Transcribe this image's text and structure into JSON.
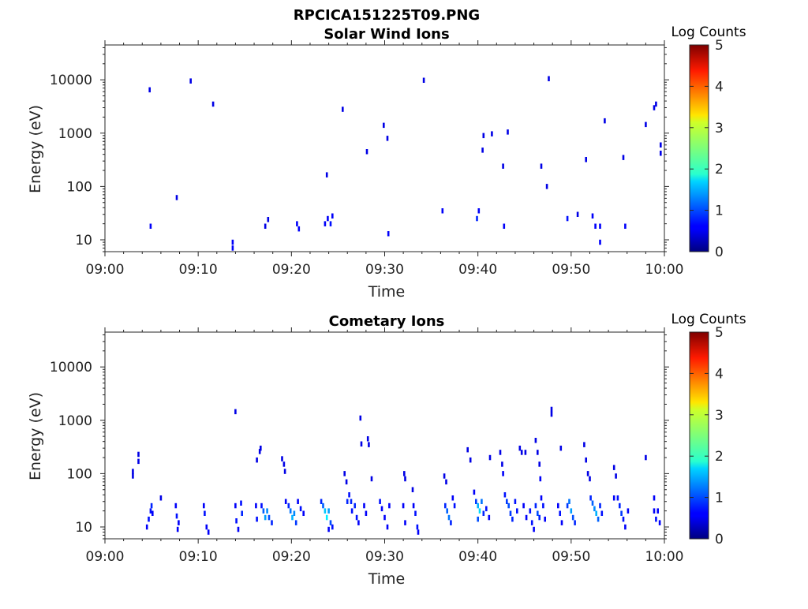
{
  "figure_title": "RPCICA151225T09.PNG",
  "colors": {
    "colormap": "jet",
    "frame": "#262626",
    "background": "#ffffff"
  },
  "chart_data": [
    {
      "type": "heatmap",
      "title": "Solar Wind Ions",
      "xlabel": "Time",
      "ylabel": "Energy (eV)",
      "x_tick_labels": [
        "09:00",
        "09:10",
        "09:20",
        "09:30",
        "09:40",
        "09:50",
        "10:00"
      ],
      "x_ticks_min": [
        0,
        10,
        20,
        30,
        40,
        50,
        60
      ],
      "xlim_min": [
        0,
        60
      ],
      "y_scale": "log",
      "ylim": [
        6,
        45000
      ],
      "y_tick_labels": [
        "10",
        "100",
        "1000",
        "10000"
      ],
      "y_ticks": [
        10,
        100,
        1000,
        10000
      ],
      "colorbar": {
        "label": "Log Counts",
        "range": [
          0,
          5
        ],
        "tick_labels": [
          "0",
          "1",
          "2",
          "3",
          "4",
          "5"
        ]
      },
      "cells": [
        [
          4.8,
          6500,
          0.5
        ],
        [
          4.9,
          18,
          0.6
        ],
        [
          7.7,
          62,
          0.5
        ],
        [
          9.2,
          9500,
          0.5
        ],
        [
          11.6,
          3500,
          0.5
        ],
        [
          13.7,
          9,
          0.6
        ],
        [
          13.7,
          7,
          0.6
        ],
        [
          17.2,
          18,
          0.5
        ],
        [
          17.5,
          24,
          0.5
        ],
        [
          20.6,
          20,
          0.6
        ],
        [
          20.8,
          16,
          0.6
        ],
        [
          23.6,
          20,
          0.6
        ],
        [
          23.8,
          165,
          0.5
        ],
        [
          23.9,
          25,
          0.6
        ],
        [
          24.2,
          20,
          0.7
        ],
        [
          24.4,
          28,
          0.6
        ],
        [
          25.5,
          2800,
          0.5
        ],
        [
          28.1,
          450,
          0.5
        ],
        [
          29.9,
          1400,
          0.5
        ],
        [
          30.3,
          800,
          0.5
        ],
        [
          30.4,
          13,
          0.6
        ],
        [
          34.2,
          9800,
          0.5
        ],
        [
          36.2,
          35,
          0.6
        ],
        [
          39.9,
          25,
          0.8
        ],
        [
          40.1,
          35,
          0.6
        ],
        [
          40.5,
          480,
          0.5
        ],
        [
          40.6,
          900,
          0.5
        ],
        [
          41.5,
          970,
          0.5
        ],
        [
          42.7,
          240,
          0.5
        ],
        [
          42.8,
          18,
          0.6
        ],
        [
          43.2,
          1050,
          0.5
        ],
        [
          46.8,
          240,
          0.5
        ],
        [
          47.4,
          100,
          0.5
        ],
        [
          47.6,
          10500,
          0.5
        ],
        [
          49.6,
          25,
          0.7
        ],
        [
          50.7,
          30,
          0.5
        ],
        [
          51.6,
          320,
          0.5
        ],
        [
          52.3,
          28,
          0.6
        ],
        [
          52.6,
          18,
          0.6
        ],
        [
          53.1,
          18,
          0.6
        ],
        [
          53.1,
          9,
          0.6
        ],
        [
          53.6,
          1700,
          0.5
        ],
        [
          55.6,
          350,
          0.5
        ],
        [
          55.8,
          18,
          0.6
        ],
        [
          58.0,
          1450,
          0.5
        ],
        [
          58.9,
          3000,
          0.5
        ],
        [
          59.1,
          3500,
          0.5
        ],
        [
          59.6,
          600,
          0.5
        ],
        [
          59.6,
          420,
          0.5
        ]
      ]
    },
    {
      "type": "heatmap",
      "title": "Cometary Ions",
      "xlabel": "Time",
      "ylabel": "Energy (eV)",
      "x_tick_labels": [
        "09:00",
        "09:10",
        "09:20",
        "09:30",
        "09:40",
        "09:50",
        "10:00"
      ],
      "x_ticks_min": [
        0,
        10,
        20,
        30,
        40,
        50,
        60
      ],
      "xlim_min": [
        0,
        60
      ],
      "y_scale": "log",
      "ylim": [
        6,
        45000
      ],
      "y_tick_labels": [
        "10",
        "100",
        "1000",
        "10000"
      ],
      "y_ticks": [
        10,
        100,
        1000,
        10000
      ],
      "colorbar": {
        "label": "Log Counts",
        "range": [
          0,
          5
        ],
        "tick_labels": [
          "0",
          "1",
          "2",
          "3",
          "4",
          "5"
        ]
      },
      "cells": [
        [
          3.0,
          110,
          0.5
        ],
        [
          3.0,
          90,
          0.5
        ],
        [
          3.6,
          230,
          0.5
        ],
        [
          3.6,
          170,
          0.5
        ],
        [
          6.0,
          35,
          0.5
        ],
        [
          4.5,
          10,
          0.6
        ],
        [
          4.7,
          14,
          0.7
        ],
        [
          4.9,
          20,
          0.7
        ],
        [
          5.0,
          25,
          0.8
        ],
        [
          5.1,
          18,
          0.6
        ],
        [
          7.6,
          25,
          0.6
        ],
        [
          7.7,
          16,
          0.7
        ],
        [
          7.8,
          9,
          0.6
        ],
        [
          7.9,
          12,
          0.6
        ],
        [
          10.6,
          25,
          0.6
        ],
        [
          10.7,
          18,
          0.7
        ],
        [
          10.9,
          10,
          0.6
        ],
        [
          11.1,
          8,
          0.6
        ],
        [
          14.0,
          1450,
          0.5
        ],
        [
          14.0,
          25,
          0.6
        ],
        [
          14.1,
          13,
          0.7
        ],
        [
          14.3,
          9,
          0.6
        ],
        [
          14.6,
          28,
          0.7
        ],
        [
          14.7,
          18,
          0.8
        ],
        [
          16.3,
          180,
          0.5
        ],
        [
          16.6,
          260,
          0.5
        ],
        [
          16.7,
          300,
          0.5
        ],
        [
          16.2,
          25,
          0.6
        ],
        [
          16.3,
          14,
          0.7
        ],
        [
          16.8,
          25,
          0.7
        ],
        [
          17.0,
          20,
          1.1
        ],
        [
          17.2,
          15,
          1.4
        ],
        [
          17.4,
          20,
          1.3
        ],
        [
          17.6,
          15,
          1.0
        ],
        [
          17.9,
          12,
          0.8
        ],
        [
          19.0,
          190,
          0.5
        ],
        [
          19.2,
          150,
          0.5
        ],
        [
          19.3,
          110,
          0.5
        ],
        [
          19.4,
          30,
          0.6
        ],
        [
          19.7,
          25,
          0.8
        ],
        [
          19.9,
          20,
          1.2
        ],
        [
          20.1,
          15,
          1.5
        ],
        [
          20.3,
          18,
          1.3
        ],
        [
          20.5,
          12,
          0.9
        ],
        [
          20.7,
          30,
          0.6
        ],
        [
          21.0,
          22,
          0.7
        ],
        [
          21.3,
          18,
          0.6
        ],
        [
          23.2,
          30,
          0.8
        ],
        [
          23.4,
          25,
          1.1
        ],
        [
          23.6,
          20,
          1.6
        ],
        [
          23.8,
          15,
          1.8
        ],
        [
          24.0,
          20,
          1.4
        ],
        [
          24.2,
          12,
          1.0
        ],
        [
          24.4,
          10,
          0.7
        ],
        [
          24.0,
          9,
          0.6
        ],
        [
          25.7,
          100,
          0.5
        ],
        [
          25.9,
          70,
          0.5
        ],
        [
          26.0,
          30,
          0.8
        ],
        [
          26.2,
          40,
          0.7
        ],
        [
          26.4,
          30,
          0.8
        ],
        [
          26.5,
          20,
          0.7
        ],
        [
          26.8,
          25,
          0.8
        ],
        [
          27.0,
          15,
          0.7
        ],
        [
          27.2,
          12,
          0.6
        ],
        [
          27.4,
          1100,
          0.5
        ],
        [
          27.5,
          360,
          0.5
        ],
        [
          28.2,
          450,
          0.5
        ],
        [
          28.3,
          350,
          0.5
        ],
        [
          28.6,
          80,
          0.5
        ],
        [
          27.8,
          25,
          0.6
        ],
        [
          28.0,
          18,
          0.6
        ],
        [
          29.5,
          30,
          0.7
        ],
        [
          29.7,
          22,
          0.6
        ],
        [
          30.0,
          15,
          0.6
        ],
        [
          30.3,
          10,
          0.6
        ],
        [
          30.5,
          25,
          0.6
        ],
        [
          32.1,
          100,
          0.5
        ],
        [
          32.2,
          80,
          0.5
        ],
        [
          32.0,
          25,
          0.6
        ],
        [
          32.2,
          12,
          0.6
        ],
        [
          33.0,
          50,
          0.5
        ],
        [
          33.1,
          25,
          0.6
        ],
        [
          33.3,
          18,
          0.7
        ],
        [
          33.5,
          10,
          0.7
        ],
        [
          33.6,
          8,
          0.6
        ],
        [
          36.4,
          90,
          0.5
        ],
        [
          36.6,
          70,
          0.5
        ],
        [
          36.5,
          25,
          0.8
        ],
        [
          36.7,
          20,
          1.1
        ],
        [
          36.9,
          15,
          1.2
        ],
        [
          37.1,
          12,
          0.8
        ],
        [
          37.3,
          35,
          0.6
        ],
        [
          37.5,
          25,
          0.7
        ],
        [
          38.9,
          280,
          0.5
        ],
        [
          39.2,
          180,
          0.5
        ],
        [
          39.6,
          45,
          0.6
        ],
        [
          39.8,
          30,
          0.9
        ],
        [
          40.0,
          25,
          1.5
        ],
        [
          40.2,
          20,
          1.7
        ],
        [
          40.4,
          30,
          1.2
        ],
        [
          40.0,
          14,
          1.0
        ],
        [
          40.6,
          18,
          0.8
        ],
        [
          40.9,
          22,
          0.7
        ],
        [
          41.2,
          15,
          0.6
        ],
        [
          41.3,
          200,
          0.5
        ],
        [
          42.4,
          250,
          0.5
        ],
        [
          42.6,
          150,
          0.5
        ],
        [
          42.7,
          100,
          0.6
        ],
        [
          42.9,
          40,
          0.7
        ],
        [
          43.1,
          30,
          0.9
        ],
        [
          43.3,
          25,
          1.0
        ],
        [
          43.5,
          18,
          0.9
        ],
        [
          43.7,
          14,
          0.8
        ],
        [
          44.0,
          30,
          0.7
        ],
        [
          44.2,
          20,
          0.7
        ],
        [
          44.5,
          300,
          0.5
        ],
        [
          44.7,
          250,
          0.5
        ],
        [
          45.1,
          250,
          0.5
        ],
        [
          44.9,
          25,
          0.6
        ],
        [
          45.2,
          15,
          0.6
        ],
        [
          45.6,
          20,
          0.7
        ],
        [
          45.8,
          12,
          0.7
        ],
        [
          46.0,
          9,
          0.6
        ],
        [
          46.2,
          25,
          0.8
        ],
        [
          46.4,
          18,
          1.0
        ],
        [
          46.6,
          15,
          0.8
        ],
        [
          46.2,
          420,
          0.5
        ],
        [
          46.4,
          250,
          0.5
        ],
        [
          46.6,
          150,
          0.5
        ],
        [
          46.7,
          80,
          0.6
        ],
        [
          46.8,
          35,
          0.6
        ],
        [
          47.0,
          25,
          0.7
        ],
        [
          47.2,
          14,
          0.6
        ],
        [
          47.9,
          1600,
          0.5
        ],
        [
          47.9,
          1300,
          0.5
        ],
        [
          48.9,
          300,
          0.5
        ],
        [
          48.6,
          25,
          0.6
        ],
        [
          48.8,
          18,
          0.7
        ],
        [
          49.0,
          12,
          0.6
        ],
        [
          49.6,
          25,
          0.9
        ],
        [
          49.8,
          30,
          1.2
        ],
        [
          50.0,
          20,
          1.4
        ],
        [
          50.2,
          15,
          1.0
        ],
        [
          50.4,
          12,
          0.8
        ],
        [
          51.4,
          350,
          0.5
        ],
        [
          51.6,
          180,
          0.5
        ],
        [
          51.8,
          100,
          0.5
        ],
        [
          52.0,
          80,
          0.5
        ],
        [
          52.1,
          35,
          0.8
        ],
        [
          52.3,
          28,
          1.1
        ],
        [
          52.5,
          22,
          1.3
        ],
        [
          52.7,
          18,
          1.5
        ],
        [
          52.9,
          14,
          1.1
        ],
        [
          53.1,
          25,
          0.8
        ],
        [
          53.3,
          18,
          0.7
        ],
        [
          54.6,
          130,
          0.5
        ],
        [
          54.8,
          90,
          0.5
        ],
        [
          54.6,
          35,
          0.6
        ],
        [
          55.0,
          35,
          0.7
        ],
        [
          55.2,
          25,
          0.8
        ],
        [
          55.4,
          18,
          0.9
        ],
        [
          55.6,
          14,
          0.7
        ],
        [
          55.8,
          10,
          0.6
        ],
        [
          56.1,
          20,
          0.6
        ],
        [
          58.0,
          200,
          0.5
        ],
        [
          58.9,
          35,
          0.6
        ],
        [
          58.9,
          20,
          0.6
        ],
        [
          59.1,
          14,
          0.7
        ],
        [
          59.3,
          20,
          0.6
        ],
        [
          59.5,
          12,
          0.6
        ]
      ]
    }
  ]
}
